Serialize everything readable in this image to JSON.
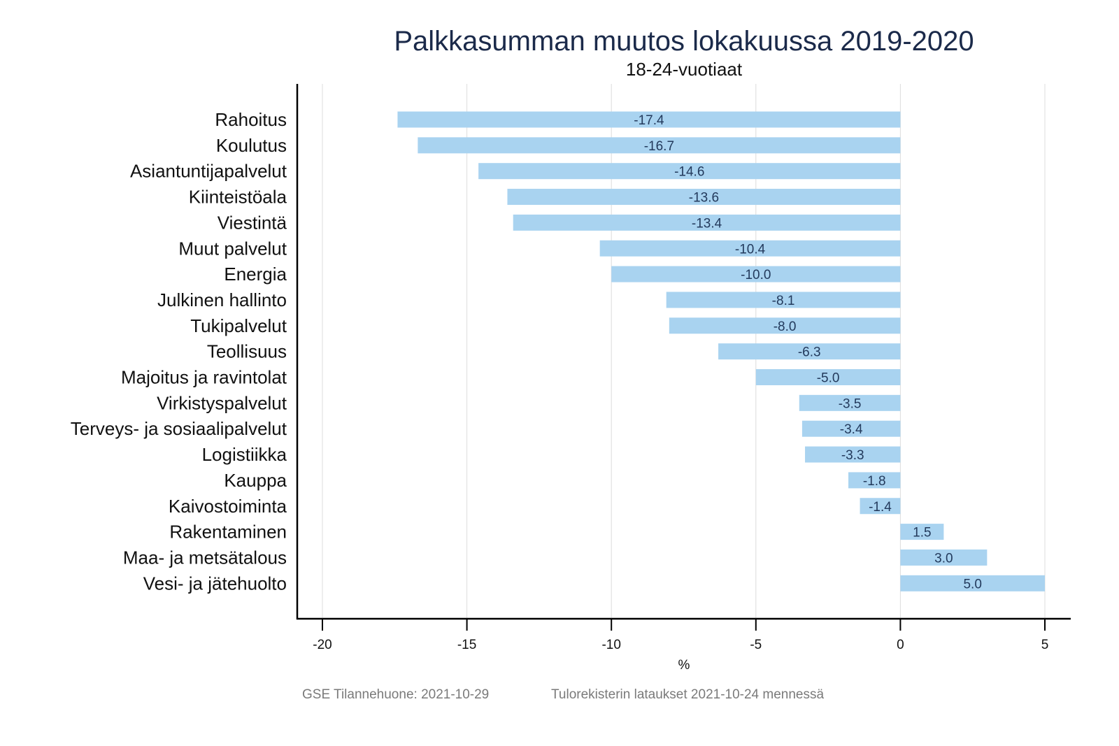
{
  "chart_data": {
    "type": "bar",
    "orientation": "horizontal",
    "title": "Palkkasumman muutos lokakuussa 2019-2020",
    "subtitle": "18-24-vuotiaat",
    "xlabel": "%",
    "ylabel": "",
    "xlim": [
      -20,
      5
    ],
    "xticks": [
      -20,
      -15,
      -10,
      -5,
      0,
      5
    ],
    "xtick_labels": [
      "-20",
      "-15",
      "-10",
      "-5",
      "0",
      "5"
    ],
    "grid": true,
    "bar_color": "#a9d3f0",
    "categories": [
      "Rahoitus",
      "Koulutus",
      "Asiantuntijapalvelut",
      "Kiinteistöala",
      "Viestintä",
      "Muut palvelut",
      "Energia",
      "Julkinen hallinto",
      "Tukipalvelut",
      "Teollisuus",
      "Majoitus ja ravintolat",
      "Virkistyspalvelut",
      "Terveys- ja sosiaalipalvelut",
      "Logistiikka",
      "Kauppa",
      "Kaivostoiminta",
      "Rakentaminen",
      "Maa- ja metsätalous",
      "Vesi- ja jätehuolto"
    ],
    "values": [
      -17.4,
      -16.7,
      -14.6,
      -13.6,
      -13.4,
      -10.4,
      -10.0,
      -8.1,
      -8.0,
      -6.3,
      -5.0,
      -3.5,
      -3.4,
      -3.3,
      -1.8,
      -1.4,
      1.5,
      3.0,
      5.0
    ],
    "value_labels": [
      "-17.4",
      "-16.7",
      "-14.6",
      "-13.6",
      "-13.4",
      "-10.4",
      "-10.0",
      "-8.1",
      "-8.0",
      "-6.3",
      "-5.0",
      "-3.5",
      "-3.4",
      "-3.3",
      "-1.8",
      "-1.4",
      "1.5",
      "3.0",
      "5.0"
    ]
  },
  "footer": {
    "source": "GSE Tilannehuone: 2021-10-29",
    "note": "Tulorekisterin lataukset 2021-10-24 mennessä"
  }
}
